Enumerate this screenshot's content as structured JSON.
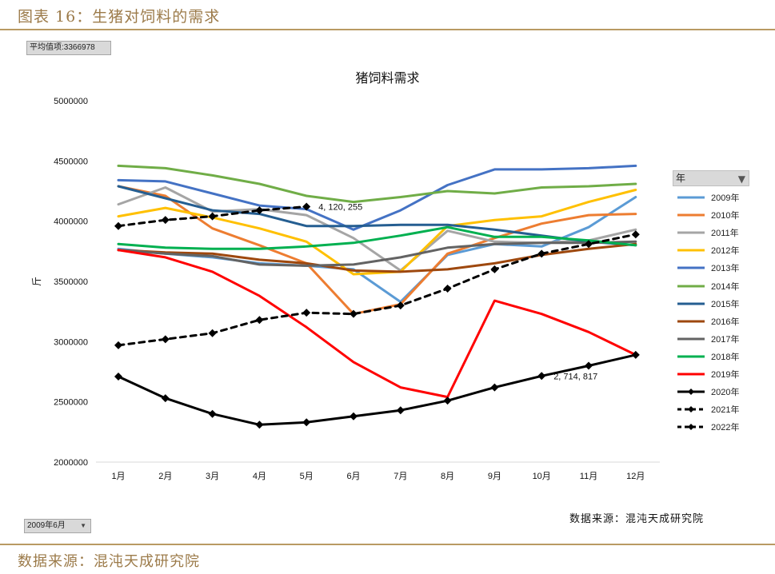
{
  "page": {
    "figure_title": "图表 16：生猪对饲料的需求",
    "source_bottom": "数据来源：混沌天成研究院",
    "average_button": "平均值项:3366978",
    "date_filter": "2009年6月",
    "source_inner": "数据来源：混沌天成研究院",
    "legend_title": "年"
  },
  "icons": {
    "dropdown": "chevron-down-icon",
    "filter": "filter-funnel-icon"
  },
  "chart_data": {
    "type": "line",
    "title": "猪饲料需求",
    "xlabel": "",
    "ylabel": "斤",
    "ylim": [
      2000000,
      5000000
    ],
    "yticks": [
      2000000,
      2500000,
      3000000,
      3500000,
      4000000,
      4500000,
      5000000
    ],
    "categories": [
      "1月",
      "2月",
      "3月",
      "4月",
      "5月",
      "6月",
      "7月",
      "8月",
      "9月",
      "10月",
      "11月",
      "12月"
    ],
    "grid": false,
    "legend_position": "right",
    "series": [
      {
        "name": "2009年",
        "color": "#5b9bd5",
        "dash": false,
        "marker": false,
        "values": [
          3770000,
          3730000,
          3700000,
          3650000,
          3630000,
          3600000,
          3330000,
          3720000,
          3810000,
          3790000,
          3950000,
          4200000
        ]
      },
      {
        "name": "2010年",
        "color": "#ed7d31",
        "dash": false,
        "marker": false,
        "values": [
          4290000,
          4210000,
          3940000,
          3800000,
          3650000,
          3230000,
          3310000,
          3730000,
          3860000,
          3980000,
          4050000,
          4060000
        ]
      },
      {
        "name": "2011年",
        "color": "#a5a5a5",
        "dash": false,
        "marker": false,
        "values": [
          4140000,
          4280000,
          4080000,
          4100000,
          4050000,
          3860000,
          3590000,
          3920000,
          3830000,
          3820000,
          3840000,
          3930000
        ]
      },
      {
        "name": "2012年",
        "color": "#ffc000",
        "dash": false,
        "marker": false,
        "values": [
          4040000,
          4110000,
          4030000,
          3940000,
          3830000,
          3560000,
          3580000,
          3960000,
          4010000,
          4040000,
          4160000,
          4260000
        ]
      },
      {
        "name": "2013年",
        "color": "#4472c4",
        "dash": false,
        "marker": false,
        "values": [
          4340000,
          4330000,
          4230000,
          4130000,
          4100000,
          3930000,
          4090000,
          4300000,
          4430000,
          4430000,
          4440000,
          4460000
        ]
      },
      {
        "name": "2014年",
        "color": "#70ad47",
        "dash": false,
        "marker": false,
        "values": [
          4460000,
          4440000,
          4380000,
          4310000,
          4210000,
          4160000,
          4200000,
          4250000,
          4230000,
          4280000,
          4290000,
          4310000
        ]
      },
      {
        "name": "2015年",
        "color": "#255e91",
        "dash": false,
        "marker": false,
        "values": [
          4290000,
          4190000,
          4090000,
          4060000,
          3960000,
          3960000,
          3970000,
          3970000,
          3930000,
          3880000,
          3830000,
          3800000
        ]
      },
      {
        "name": "2016年",
        "color": "#9e480e",
        "dash": false,
        "marker": false,
        "values": [
          3760000,
          3740000,
          3730000,
          3680000,
          3650000,
          3590000,
          3580000,
          3600000,
          3650000,
          3720000,
          3770000,
          3810000
        ]
      },
      {
        "name": "2017年",
        "color": "#636363",
        "dash": false,
        "marker": false,
        "values": [
          3760000,
          3730000,
          3710000,
          3640000,
          3630000,
          3640000,
          3700000,
          3780000,
          3810000,
          3820000,
          3820000,
          3830000
        ]
      },
      {
        "name": "2018年",
        "color": "#00b050",
        "dash": false,
        "marker": false,
        "values": [
          3810000,
          3780000,
          3770000,
          3770000,
          3790000,
          3820000,
          3880000,
          3950000,
          3870000,
          3870000,
          3840000,
          3800000
        ]
      },
      {
        "name": "2019年",
        "color": "#ff0000",
        "dash": false,
        "marker": false,
        "values": [
          3760000,
          3700000,
          3580000,
          3380000,
          3120000,
          2830000,
          2620000,
          2540000,
          3340000,
          3230000,
          3080000,
          2890000
        ]
      },
      {
        "name": "2020年",
        "color": "#000000",
        "dash": false,
        "marker": true,
        "values": [
          2710000,
          2530000,
          2400000,
          2310000,
          2330000,
          2380000,
          2430000,
          2510000,
          2620000,
          2714817,
          2800000,
          2890000
        ]
      },
      {
        "name": "2021年",
        "color": "#000000",
        "dash": true,
        "marker": true,
        "values": [
          2970000,
          3020000,
          3070000,
          3180000,
          3240000,
          3230000,
          3300000,
          3440000,
          3600000,
          3730000,
          3810000,
          3890000
        ]
      },
      {
        "name": "2022年",
        "color": "#000000",
        "dash": true,
        "marker": true,
        "values": [
          3960000,
          4010000,
          4040000,
          4090000,
          4120255,
          null,
          null,
          null,
          null,
          null,
          null,
          null
        ]
      }
    ],
    "annotations": [
      {
        "text": "4, 120, 255",
        "series": "2022年",
        "category": "5月"
      },
      {
        "text": "2, 714, 817",
        "series": "2020年",
        "category": "10月"
      }
    ]
  }
}
